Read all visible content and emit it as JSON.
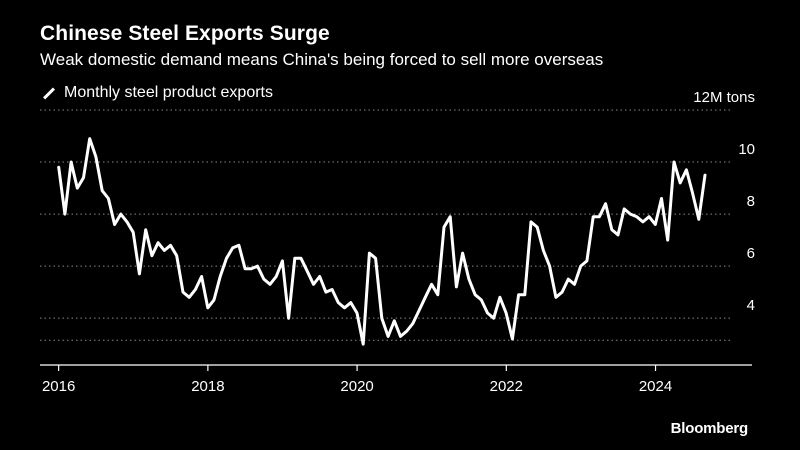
{
  "header": {
    "title": "Chinese Steel Exports Surge",
    "subtitle": "Weak domestic demand means China's being forced to sell more overseas"
  },
  "footer": {
    "brand": "Bloomberg"
  },
  "colors": {
    "background": "#000000",
    "line": "#ffffff",
    "grid": "#8a8a8a"
  },
  "chart_data": {
    "type": "line",
    "title": "Chinese Steel Exports Surge",
    "ylabel": "12M tons",
    "ylim": [
      2.2,
      12
    ],
    "yticks": [
      4,
      6,
      8,
      10
    ],
    "yticks_labels": [
      "4",
      "6",
      "8",
      "10"
    ],
    "xticks": [
      2016,
      2018,
      2020,
      2022,
      2024
    ],
    "xticks_labels": [
      "2016",
      "2018",
      "2020",
      "2022",
      "2024"
    ],
    "xlim": [
      2015.75,
      2025.4
    ],
    "grid": true,
    "legend": "top-left",
    "series": [
      {
        "name": "Monthly steel product exports",
        "x_start": 2016.0,
        "x_step": 0.0833,
        "values": [
          9.8,
          8.0,
          10.0,
          9.0,
          9.4,
          10.9,
          10.2,
          8.9,
          8.6,
          7.6,
          8.0,
          7.7,
          7.3,
          5.7,
          7.4,
          6.4,
          6.9,
          6.6,
          6.8,
          6.4,
          5.0,
          4.8,
          5.1,
          5.6,
          4.4,
          4.7,
          5.6,
          6.3,
          6.7,
          6.8,
          5.9,
          5.9,
          6.0,
          5.5,
          5.3,
          5.6,
          6.2,
          4.0,
          6.3,
          6.3,
          5.8,
          5.3,
          5.6,
          5.0,
          5.1,
          4.6,
          4.4,
          4.6,
          4.2,
          3.0,
          6.5,
          6.3,
          4.0,
          3.3,
          3.9,
          3.3,
          3.5,
          3.8,
          4.3,
          4.8,
          5.3,
          4.9,
          7.5,
          7.9,
          5.2,
          6.5,
          5.5,
          4.9,
          4.7,
          4.2,
          4.0,
          4.8,
          4.2,
          3.2,
          4.9,
          4.9,
          7.7,
          7.5,
          6.6,
          6.0,
          4.8,
          5.0,
          5.5,
          5.3,
          6.0,
          6.2,
          7.9,
          7.9,
          8.4,
          7.4,
          7.2,
          8.2,
          8.0,
          7.9,
          7.7,
          7.9,
          7.6,
          8.6,
          7.0,
          10.0,
          9.2,
          9.7,
          8.8,
          7.8,
          9.5
        ]
      }
    ]
  }
}
